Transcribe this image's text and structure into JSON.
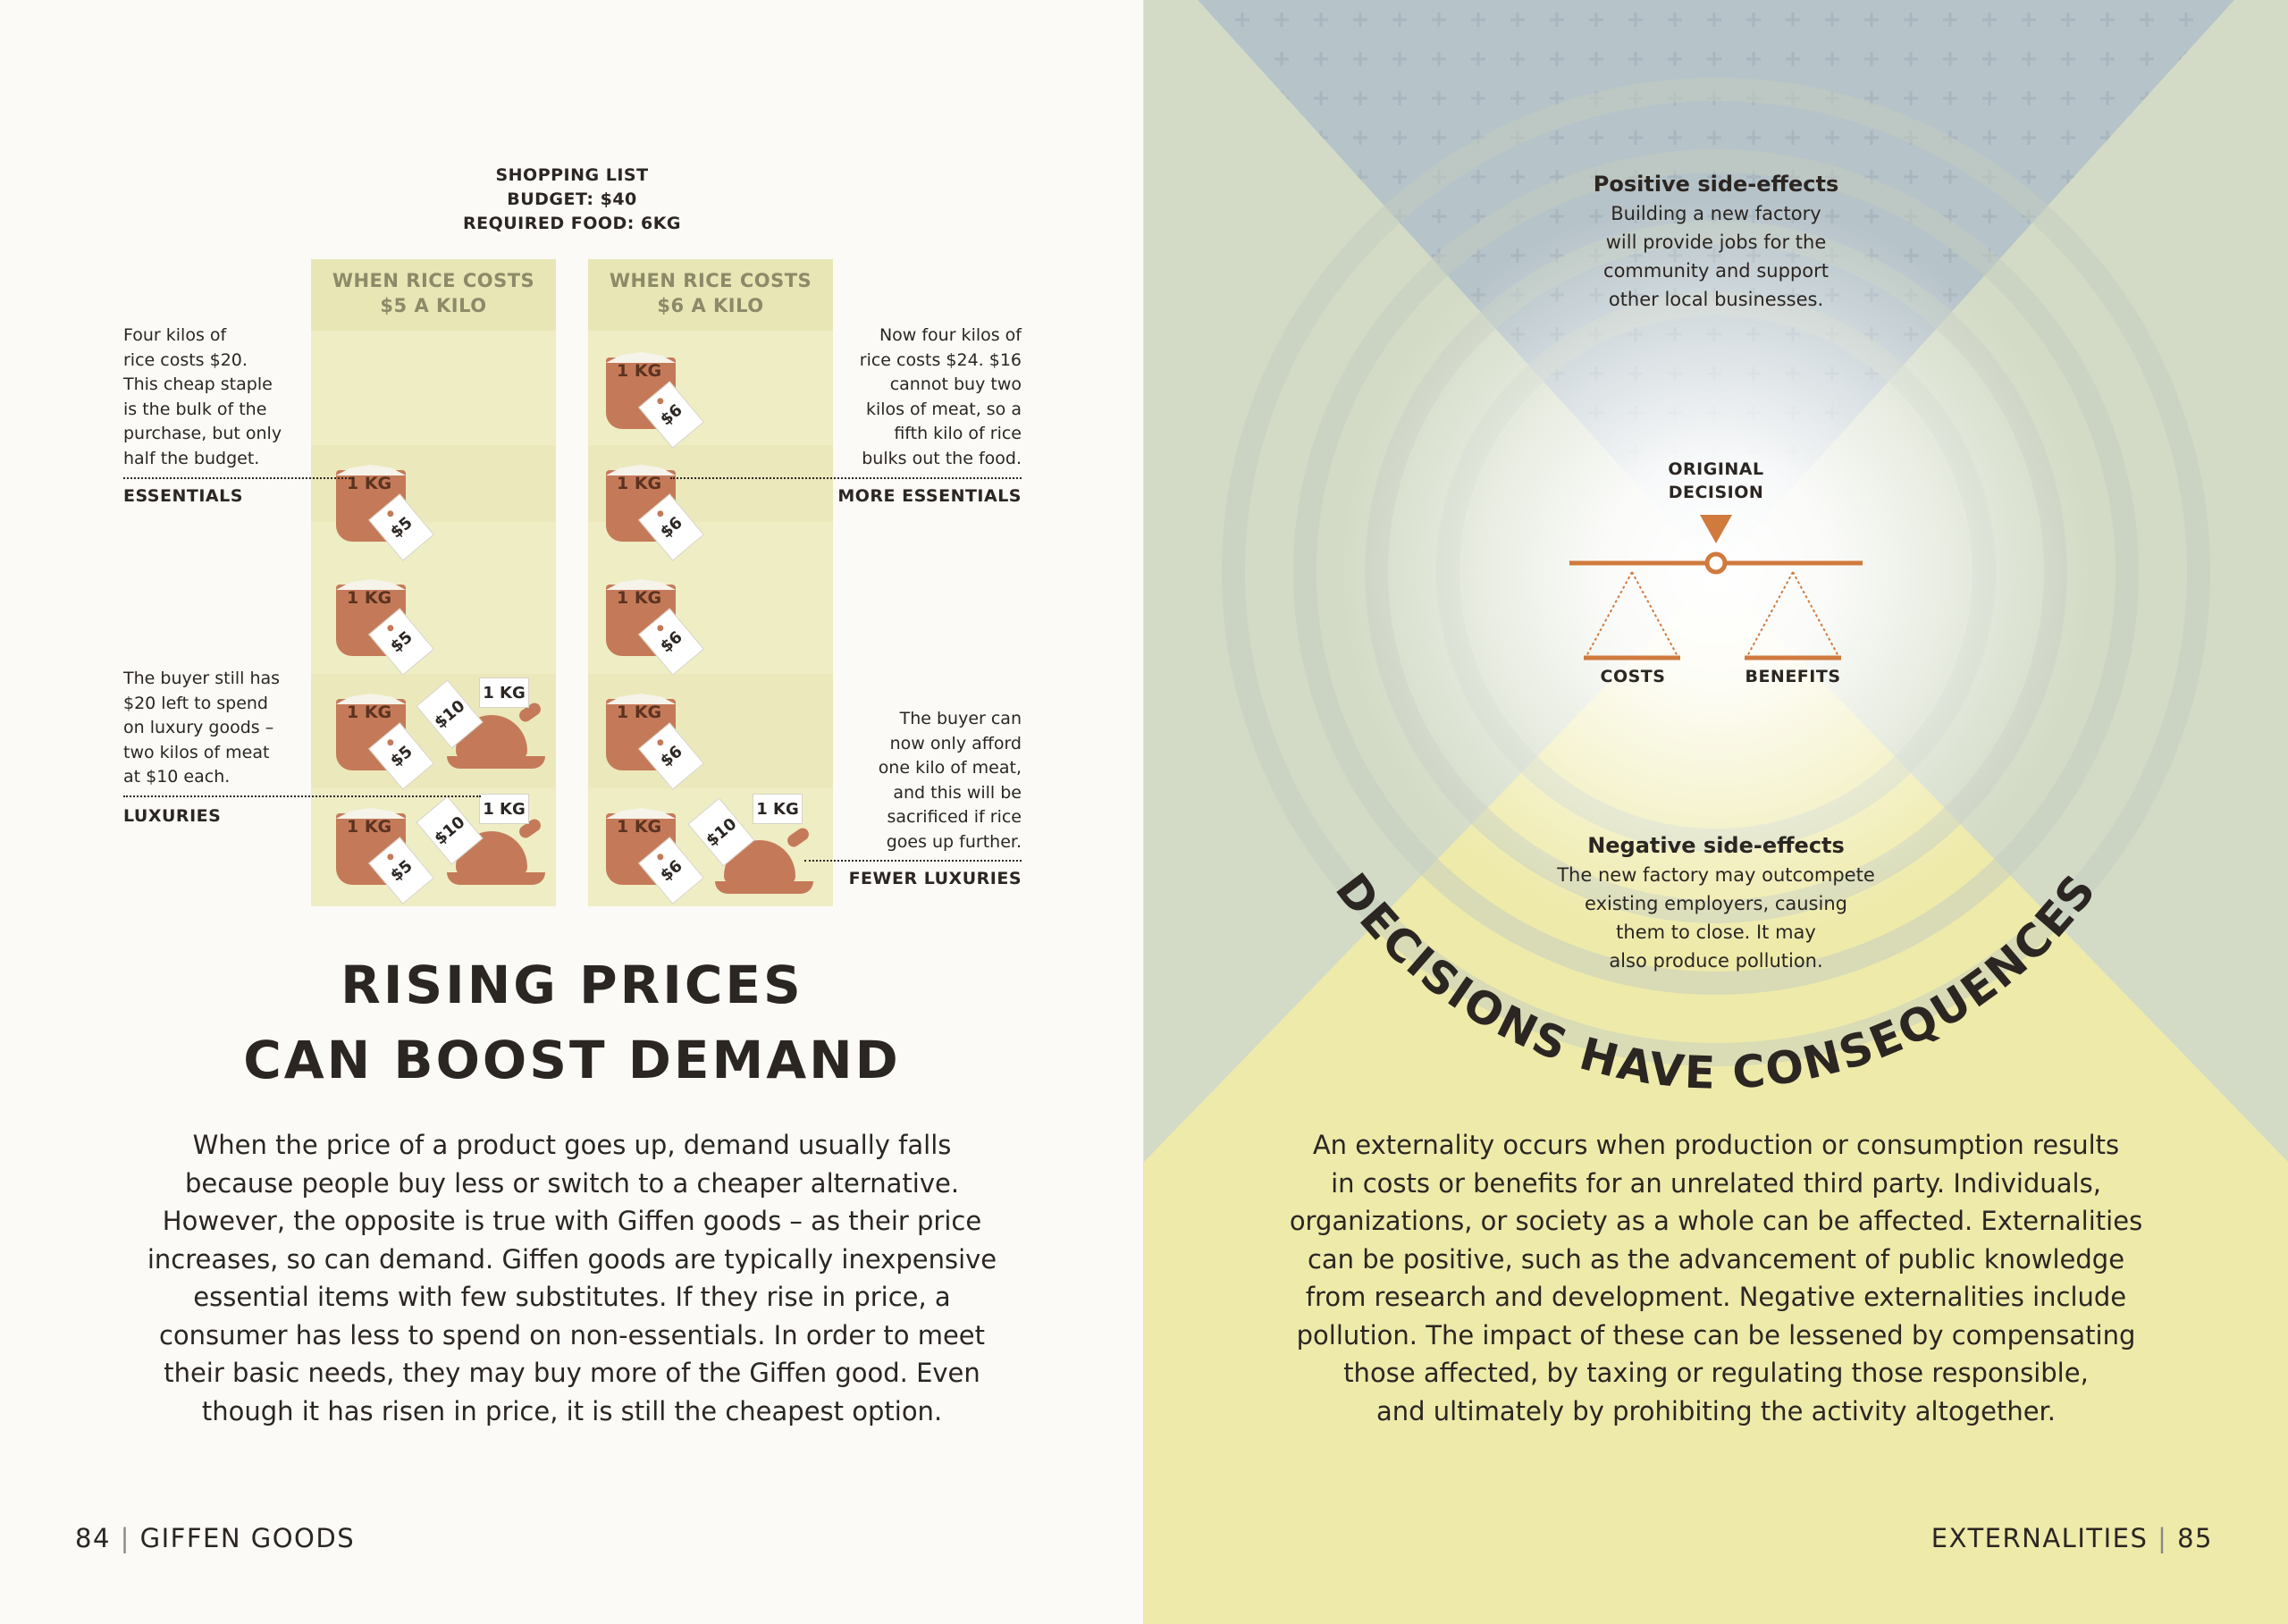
{
  "left_page": {
    "shopping_list": [
      "SHOPPING LIST",
      "BUDGET: $40",
      "REQUIRED FOOD: 6KG"
    ],
    "col1_header": [
      "WHEN RICE COSTS",
      "$5 A KILO"
    ],
    "col2_header": [
      "WHEN RICE COSTS",
      "$6 A KILO"
    ],
    "ann_left_top": [
      "Four kilos of",
      "rice costs $20.",
      "This cheap staple",
      "is the bulk of the",
      "purchase, but only",
      "half the budget."
    ],
    "label_essentials": "ESSENTIALS",
    "ann_left_bottom": [
      "The buyer still has",
      "$20 left to spend",
      "on luxury goods –",
      "two kilos of meat",
      "at $10 each."
    ],
    "label_luxuries": "LUXURIES",
    "ann_right_top": [
      "Now four kilos of",
      "rice costs $24. $16",
      "cannot buy two",
      "kilos of meat, so a",
      "fifth kilo of rice",
      "bulks out the food."
    ],
    "label_more_essentials": "MORE ESSENTIALS",
    "ann_right_bottom": [
      "The buyer can",
      "now only afford",
      "one kilo of meat,",
      "and this will be",
      "sacrificed if rice",
      "goes up further."
    ],
    "label_fewer_luxuries": "FEWER LUXURIES",
    "kg_label": "1 KG",
    "price_rice_5": "$5",
    "price_rice_6": "$6",
    "price_meat": "$10",
    "title": [
      "RISING PRICES",
      "CAN BOOST DEMAND"
    ],
    "body": [
      "When the price of a product goes up, demand usually falls",
      "because people buy less or switch to a cheaper alternative.",
      "However, the opposite is true with Giffen goods – as their price",
      "increases, so can demand. Giffen goods are typically inexpensive",
      "essential items with few substitutes. If they rise in price, a",
      "consumer has less to spend on non-essentials. In order to meet",
      "their basic needs, they may buy more of the Giffen good. Even",
      "though it has risen in price, it is still the cheapest option."
    ],
    "folio_number": "84",
    "folio_section": "GIFFEN GOODS"
  },
  "right_page": {
    "positive_title": "Positive side-effects",
    "positive_body": [
      "Building a new factory",
      "will provide jobs for the",
      "community and support",
      "other local businesses."
    ],
    "original_decision": [
      "ORIGINAL",
      "DECISION"
    ],
    "costs": "COSTS",
    "benefits": "BENEFITS",
    "negative_title": "Negative side-effects",
    "negative_body": [
      "The new factory may outcompete",
      "existing employers, causing",
      "them to close. It may",
      "also produce pollution."
    ],
    "arc_title": "DECISIONS HAVE CONSEQUENCES",
    "body": [
      "An externality occurs when production or consumption results",
      "in costs or benefits for an unrelated third party. Individuals,",
      "organizations, or society as a whole can be affected. Externalities",
      "can be positive, such as the advancement of public knowledge",
      "from research and development. Negative externalities include",
      "pollution. The impact of these can be lessened by compensating",
      "those affected, by taxing or regulating those responsible,",
      "and ultimately by prohibiting the activity altogether."
    ],
    "folio_section": "EXTERNALITIES",
    "folio_number": "85"
  },
  "colors": {
    "rice": "#c47a59",
    "column_bg": "#efedc4",
    "blue_zone": "#b7c4c9",
    "yellow_zone": "#eeeaa8"
  }
}
